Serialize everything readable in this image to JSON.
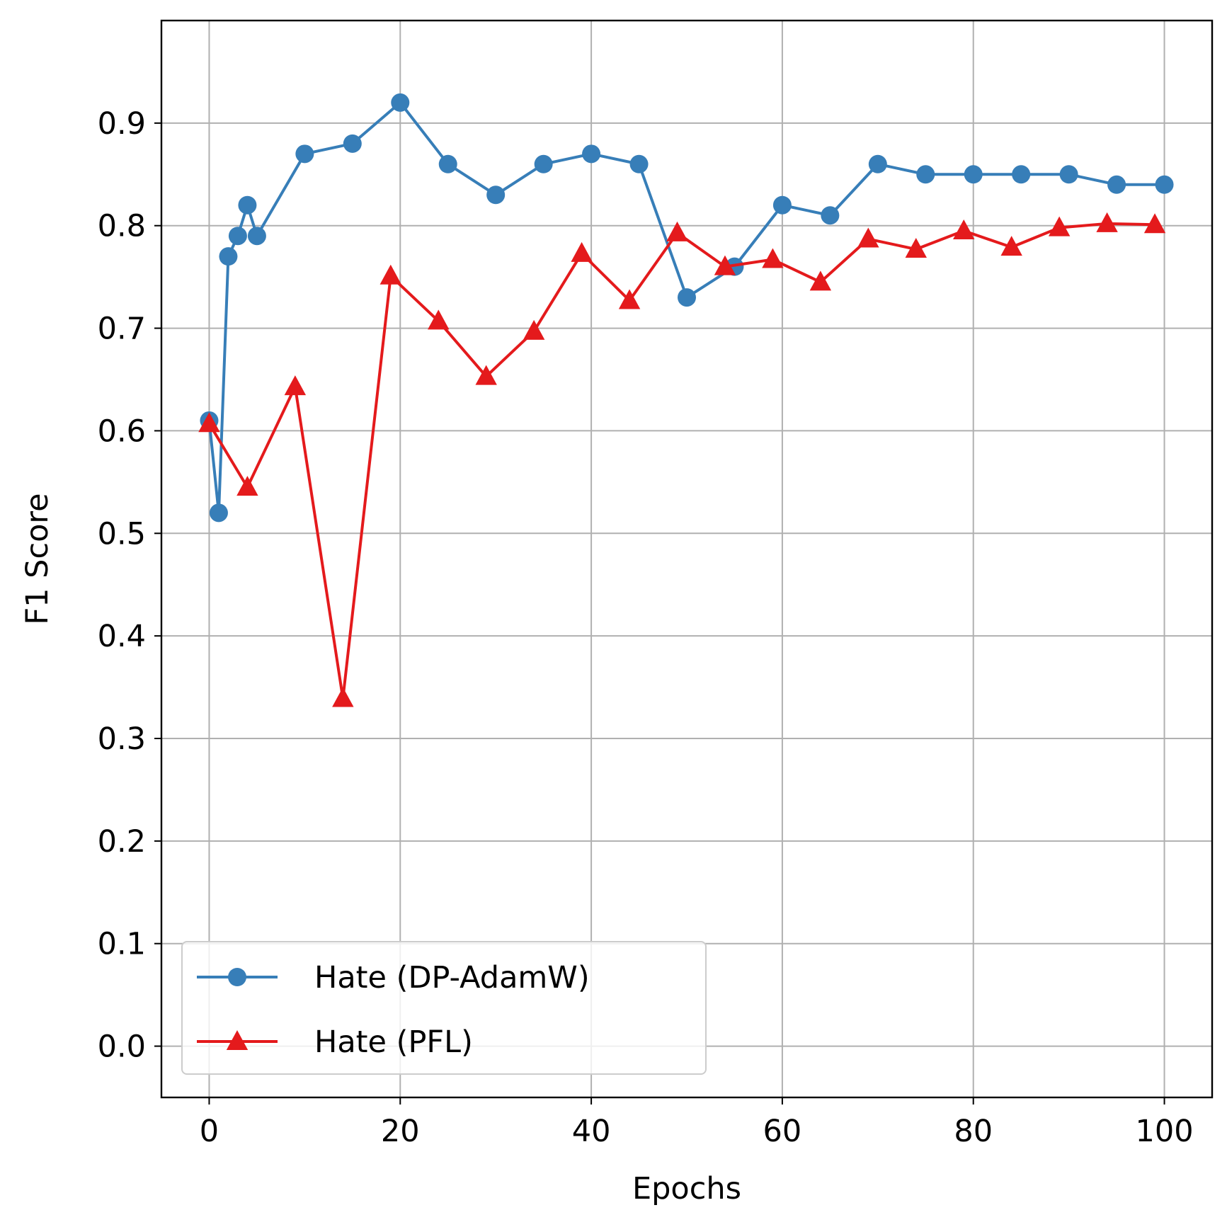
{
  "chart_data": {
    "type": "line",
    "title": "",
    "xlabel": "Epochs",
    "ylabel": "F1 Score",
    "xlim": [
      -5,
      105
    ],
    "ylim": [
      -0.05,
      1.0
    ],
    "xticks": [
      0,
      20,
      40,
      60,
      80,
      100
    ],
    "xtick_labels": [
      "0",
      "20",
      "40",
      "60",
      "80",
      "100"
    ],
    "yticks": [
      0.0,
      0.1,
      0.2,
      0.3,
      0.4,
      0.5,
      0.6,
      0.7,
      0.8,
      0.9
    ],
    "ytick_labels": [
      "0.0",
      "0.1",
      "0.2",
      "0.3",
      "0.4",
      "0.5",
      "0.6",
      "0.7",
      "0.8",
      "0.9"
    ],
    "grid": true,
    "legend_position": "lower-left",
    "series": [
      {
        "name": "Hate (DP-AdamW)",
        "color": "#377eb8",
        "marker": "circle",
        "x": [
          0,
          1,
          2,
          3,
          4,
          5,
          10,
          15,
          20,
          25,
          30,
          35,
          40,
          45,
          50,
          55,
          60,
          65,
          70,
          75,
          80,
          85,
          90,
          95,
          100
        ],
        "y": [
          0.61,
          0.52,
          0.77,
          0.79,
          0.82,
          0.79,
          0.87,
          0.88,
          0.92,
          0.86,
          0.83,
          0.86,
          0.87,
          0.86,
          0.73,
          0.76,
          0.82,
          0.81,
          0.86,
          0.85,
          0.85,
          0.85,
          0.85,
          0.84,
          0.84
        ]
      },
      {
        "name": "Hate (PFL)",
        "color": "#e41a1c",
        "marker": "triangle",
        "x": [
          0,
          4,
          9,
          14,
          19,
          24,
          29,
          34,
          39,
          44,
          49,
          54,
          59,
          64,
          69,
          74,
          79,
          84,
          89,
          94,
          99
        ],
        "y": [
          0.607,
          0.545,
          0.643,
          0.339,
          0.751,
          0.707,
          0.653,
          0.697,
          0.773,
          0.727,
          0.793,
          0.76,
          0.767,
          0.745,
          0.787,
          0.777,
          0.795,
          0.779,
          0.798,
          0.802,
          0.801
        ]
      }
    ]
  }
}
